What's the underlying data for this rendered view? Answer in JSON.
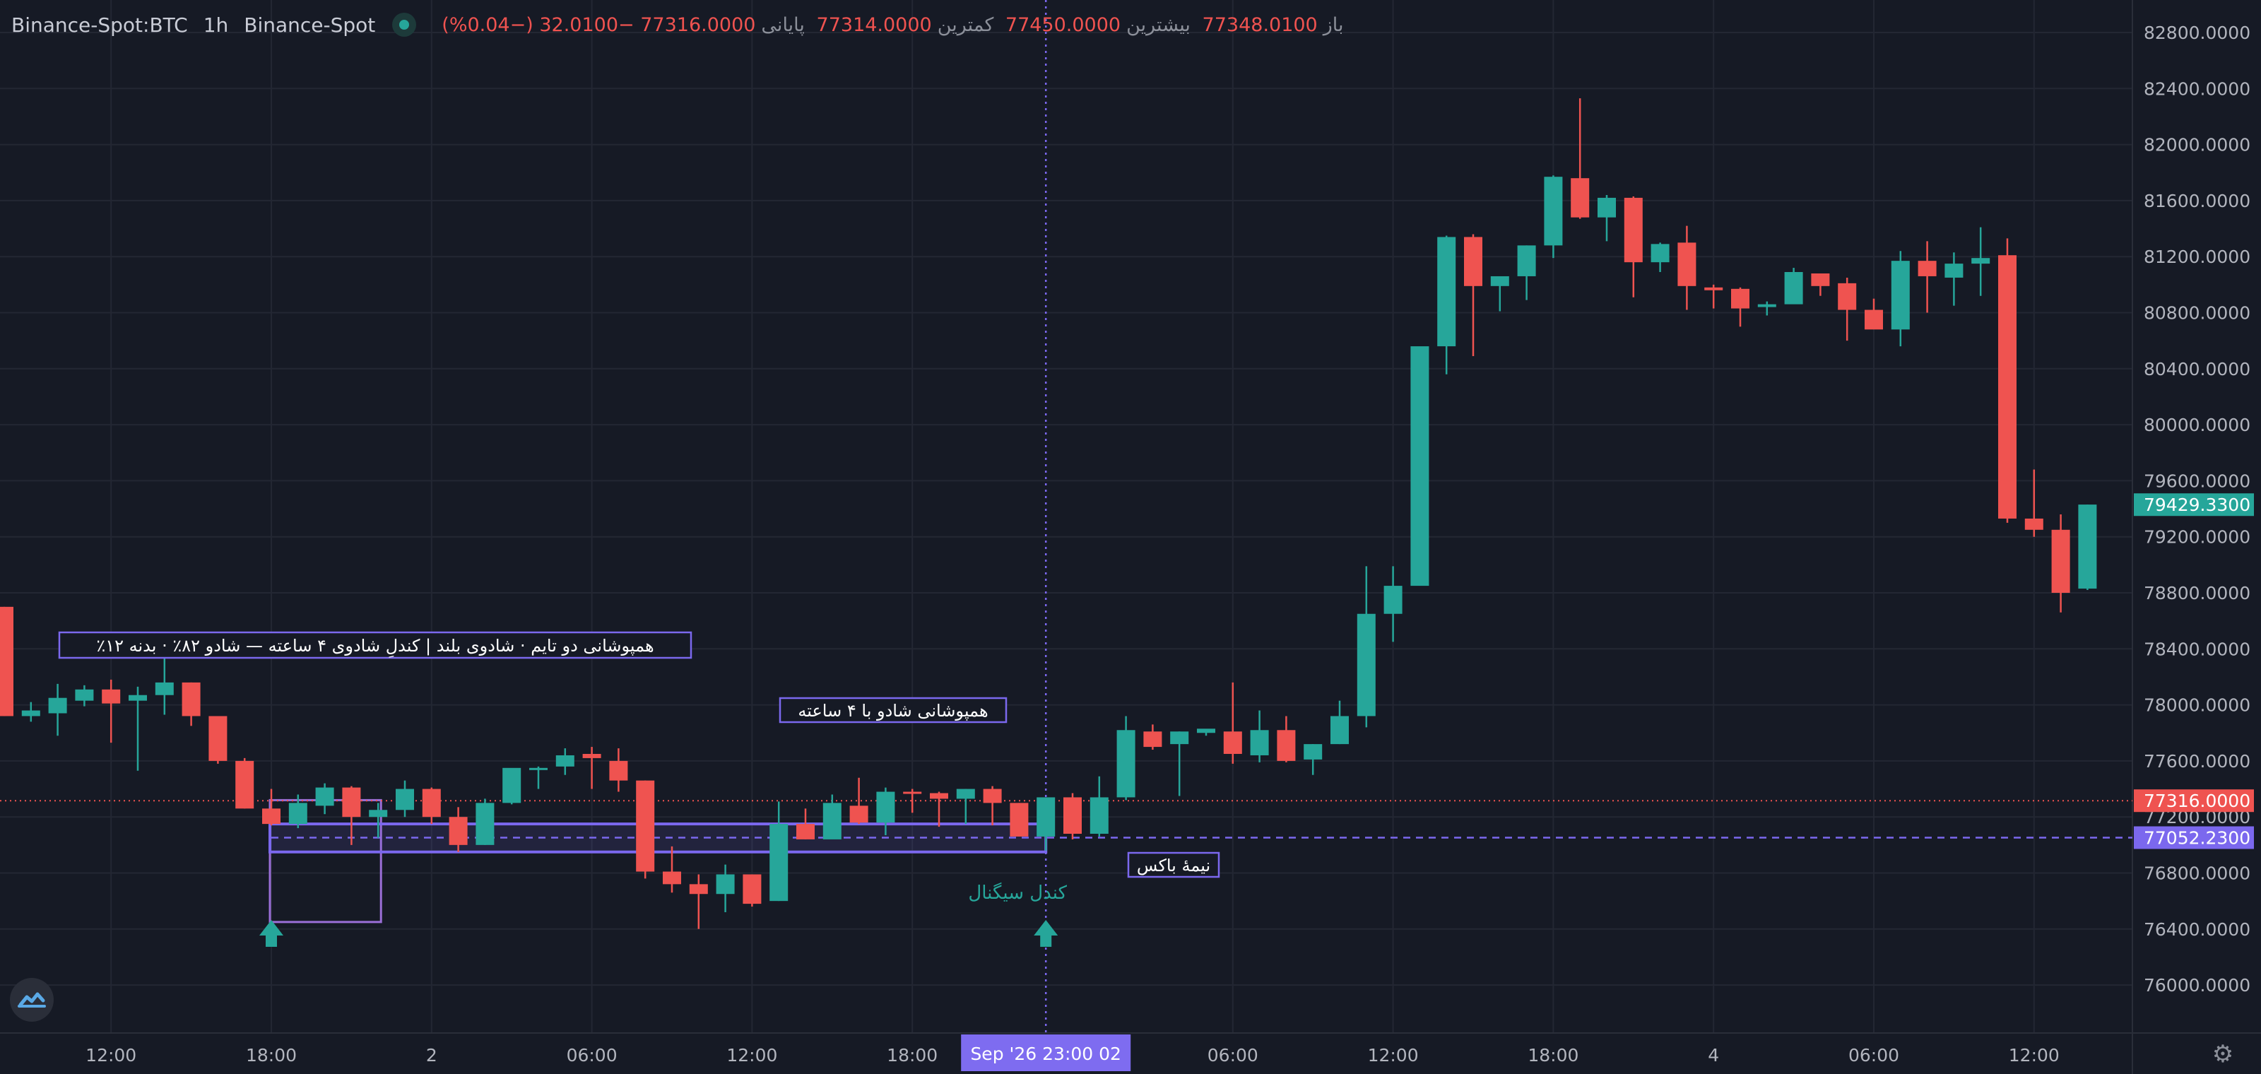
{
  "legend": {
    "symbol": "Binance-Spot:BTC",
    "interval": "1h",
    "exchange": "Binance-Spot",
    "open_label": "باز",
    "open": "77348.0100",
    "high_label": "بیشترین",
    "high": "77450.0000",
    "low_label": "کمترین",
    "low": "77314.0000",
    "close_label": "پایانی",
    "close": "77316.0000",
    "change": "−32.0100 (−0.04%)"
  },
  "colors": {
    "background": "#161a25",
    "up": "#26a69a",
    "down": "#ef5350",
    "grid": "#232733",
    "axis_text": "#b2b5be",
    "purple": "#7b68ee",
    "purple_label": "#7e6cf0"
  },
  "icons": {
    "settings": "gear-icon",
    "logo": "tradingview-logo-icon"
  },
  "chart_data": {
    "type": "candlestick",
    "interval": "1h",
    "y_axis": {
      "ticks": [
        "82800.0000",
        "82400.0000",
        "82000.0000",
        "81600.0000",
        "81200.0000",
        "80800.0000",
        "80400.0000",
        "80000.0000",
        "79600.0000",
        "79200.0000",
        "78800.0000",
        "78400.0000",
        "78000.0000",
        "77600.0000",
        "77200.0000",
        "76800.0000",
        "76400.0000",
        "76000.0000"
      ],
      "range": [
        75820,
        82960
      ]
    },
    "x_axis": {
      "ticks": [
        {
          "label": "12:00",
          "i": 4
        },
        {
          "label": "18:00",
          "i": 10
        },
        {
          "label": "2",
          "i": 16
        },
        {
          "label": "06:00",
          "i": 22
        },
        {
          "label": "12:00",
          "i": 28
        },
        {
          "label": "18:00",
          "i": 34
        },
        {
          "label": "06:00",
          "i": 46
        },
        {
          "label": "12:00",
          "i": 52
        },
        {
          "label": "18:00",
          "i": 58
        },
        {
          "label": "4",
          "i": 64
        },
        {
          "label": "06:00",
          "i": 70
        },
        {
          "label": "12:00",
          "i": 76
        }
      ],
      "crosshair_label": "Sep '26   23:00 02"
    },
    "crosshair_index": 39,
    "candles": [
      [
        78700,
        78700,
        77920,
        77920
      ],
      [
        77920,
        78020,
        77880,
        77960
      ],
      [
        77940,
        78150,
        77780,
        78050
      ],
      [
        78030,
        78140,
        77990,
        78110
      ],
      [
        78110,
        78180,
        77730,
        78010
      ],
      [
        78030,
        78130,
        77530,
        78070
      ],
      [
        78070,
        78350,
        77930,
        78160
      ],
      [
        78160,
        78160,
        77850,
        77920
      ],
      [
        77920,
        77920,
        77580,
        77600
      ],
      [
        77600,
        77620,
        77260,
        77260
      ],
      [
        77260,
        77400,
        77140,
        77150
      ],
      [
        77150,
        77360,
        77120,
        77300
      ],
      [
        77280,
        77440,
        77220,
        77410
      ],
      [
        77410,
        77420,
        77000,
        77200
      ],
      [
        77200,
        77300,
        77050,
        77250
      ],
      [
        77250,
        77460,
        77200,
        77400
      ],
      [
        77400,
        77410,
        77150,
        77200
      ],
      [
        77200,
        77270,
        76950,
        77000
      ],
      [
        77000,
        77330,
        77000,
        77300
      ],
      [
        77300,
        77530,
        77290,
        77550
      ],
      [
        77550,
        77560,
        77400,
        77550
      ],
      [
        77560,
        77690,
        77500,
        77640
      ],
      [
        77650,
        77700,
        77400,
        77620
      ],
      [
        77600,
        77690,
        77380,
        77460
      ],
      [
        77460,
        77460,
        76760,
        76810
      ],
      [
        76810,
        76990,
        76660,
        76720
      ],
      [
        76720,
        76790,
        76400,
        76650
      ],
      [
        76650,
        76860,
        76520,
        76790
      ],
      [
        76790,
        76790,
        76560,
        76580
      ],
      [
        76600,
        77310,
        76600,
        77150
      ],
      [
        77150,
        77260,
        77040,
        77040
      ],
      [
        77040,
        77360,
        77060,
        77300
      ],
      [
        77280,
        77480,
        77150,
        77160
      ],
      [
        77160,
        77410,
        77070,
        77380
      ],
      [
        77380,
        77400,
        77230,
        77370
      ],
      [
        77370,
        77380,
        77130,
        77330
      ],
      [
        77330,
        77400,
        77150,
        77400
      ],
      [
        77400,
        77420,
        77140,
        77300
      ],
      [
        77300,
        77300,
        77060,
        77060
      ],
      [
        77060,
        77340,
        76960,
        77340
      ],
      [
        77340,
        77370,
        77040,
        77080
      ],
      [
        77080,
        77490,
        77060,
        77340
      ],
      [
        77340,
        77920,
        77320,
        77820
      ],
      [
        77810,
        77860,
        77680,
        77700
      ],
      [
        77720,
        77810,
        77350,
        77810
      ],
      [
        77800,
        77820,
        77780,
        77830
      ],
      [
        77810,
        78160,
        77580,
        77650
      ],
      [
        77640,
        77960,
        77590,
        77820
      ],
      [
        77820,
        77920,
        77590,
        77600
      ],
      [
        77610,
        77720,
        77500,
        77720
      ],
      [
        77720,
        78030,
        77720,
        77920
      ],
      [
        77920,
        78990,
        77840,
        78650
      ],
      [
        78650,
        78990,
        78450,
        78850
      ],
      [
        78850,
        80530,
        78870,
        80560
      ],
      [
        80560,
        81350,
        80360,
        81340
      ],
      [
        81340,
        81360,
        80490,
        80990
      ],
      [
        80990,
        81020,
        80810,
        81060
      ],
      [
        81060,
        81280,
        80890,
        81280
      ],
      [
        81280,
        81780,
        81190,
        81770
      ],
      [
        81760,
        82330,
        81470,
        81480
      ],
      [
        81480,
        81640,
        81310,
        81620
      ],
      [
        81620,
        81630,
        80910,
        81160
      ],
      [
        81160,
        81300,
        81090,
        81290
      ],
      [
        81300,
        81420,
        80820,
        80990
      ],
      [
        80980,
        81000,
        80830,
        80960
      ],
      [
        80970,
        80980,
        80700,
        80830
      ],
      [
        80840,
        80880,
        80780,
        80860
      ],
      [
        80860,
        81120,
        80870,
        81090
      ],
      [
        81080,
        81080,
        80920,
        80990
      ],
      [
        81010,
        81050,
        80600,
        80820
      ],
      [
        80820,
        80900,
        80730,
        80680
      ],
      [
        80680,
        81240,
        80560,
        81170
      ],
      [
        81170,
        81310,
        80800,
        81060
      ],
      [
        81050,
        81230,
        80850,
        81150
      ],
      [
        81150,
        81410,
        80920,
        81190
      ],
      [
        81210,
        81330,
        79300,
        79330
      ],
      [
        79330,
        79680,
        79200,
        79250
      ],
      [
        79250,
        79360,
        78660,
        78800
      ],
      [
        78830,
        79430,
        78820,
        79430
      ]
    ],
    "last_price_line": {
      "value": 77316.0,
      "label": "77316.0000",
      "color": "#ef5350"
    },
    "mid_box_line": {
      "value": 77052.23,
      "label": "77052.2300",
      "color": "#7b68ee"
    },
    "current_price": {
      "value": 79429.33,
      "label": "79429.3300",
      "color": "#26a69a"
    },
    "annotations": {
      "main_label": "٪همپوشانی دو تایم · شادوی بلند | کندلِ شادوی ۴ ساعته — شادو ۸۲٪ · بدنه ۱۲",
      "box_label": "همپوشانی شادو با ۴ ساعته",
      "signal_label": "کندل سیگنال",
      "mid_label": "نیمهٔ باکس"
    }
  }
}
